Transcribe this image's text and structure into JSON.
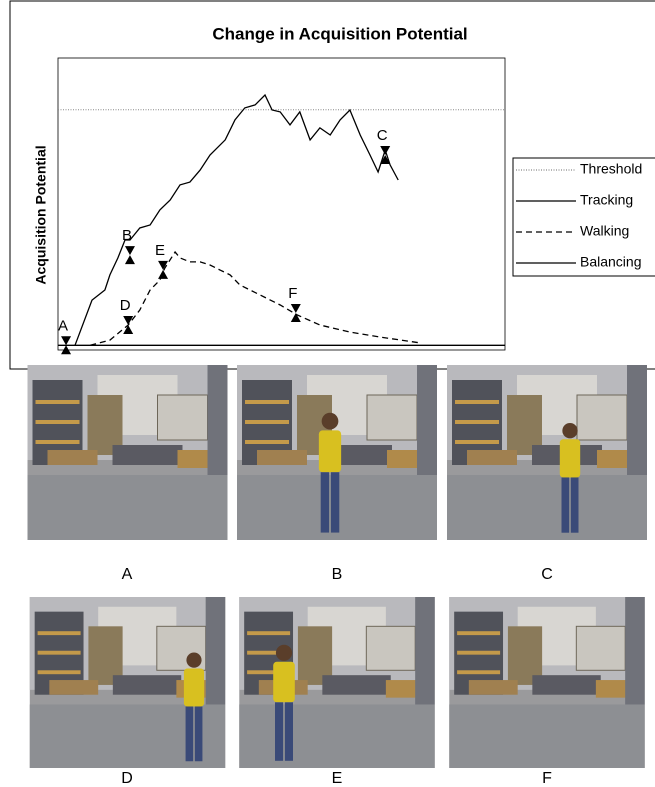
{
  "chart_data": {
    "type": "line",
    "title": "Change in Acquisition Potential",
    "y_label": "Acquisition Potential",
    "xlim": [
      0,
      100
    ],
    "ylim": [
      -2,
      122
    ],
    "series": [
      {
        "name": "Threshold",
        "color": "#888888",
        "style": "dotted",
        "x": [
          0,
          100
        ],
        "values": [
          100,
          100
        ]
      },
      {
        "name": "Tracking",
        "color": "#000000",
        "style": "solid",
        "x": [
          3.8,
          7.6,
          10.5,
          11.6,
          13.4,
          15.0,
          16.1,
          18.3,
          20.6,
          22.8,
          25.1,
          27.3,
          29.5,
          31.8,
          34.0,
          37.4,
          39.6,
          41.8,
          44.1,
          46.3,
          47.9,
          49.7,
          51.9,
          54.1,
          56.4,
          58.6,
          60.9,
          63.1,
          65.3,
          67.6,
          69.8,
          71.6,
          73.2,
          74.3,
          76.1
        ],
        "values": [
          0,
          19.2,
          23.5,
          29.9,
          37.1,
          44.7,
          44.7,
          49.8,
          51.1,
          57.5,
          61.7,
          68.1,
          69.3,
          74.4,
          80.8,
          87.2,
          95.7,
          100.8,
          102.1,
          106.3,
          99.9,
          99.1,
          93.6,
          99.1,
          87.2,
          92.3,
          89.3,
          95.7,
          99.9,
          89.3,
          80.8,
          73.6,
          82.9,
          76.6,
          70.2
        ]
      },
      {
        "name": "Walking",
        "color": "#000000",
        "style": "dashed",
        "x": [
          7.2,
          11.6,
          15.7,
          18.3,
          20.6,
          22.8,
          23.9,
          26.2,
          27.3,
          29.5,
          31.8,
          34.0,
          36.2,
          38.5,
          40.7,
          45.2,
          49.7,
          53.5,
          58.6,
          65.3,
          72.0,
          81.0
        ],
        "values": [
          0,
          2.2,
          8.6,
          15.0,
          23.5,
          27.7,
          32.8,
          39.6,
          37.1,
          35.4,
          35.4,
          34.1,
          32.0,
          29.9,
          25.6,
          21.4,
          17.1,
          12.9,
          8.6,
          5.6,
          3.5,
          1.0
        ]
      },
      {
        "name": "Balancing",
        "color": "#000000",
        "style": "solid",
        "x": [
          0,
          100
        ],
        "values": [
          0,
          0
        ]
      }
    ],
    "markers": [
      {
        "label": "A",
        "x": 1.8,
        "y": 0
      },
      {
        "label": "B",
        "x": 16.1,
        "y": 38.3
      },
      {
        "label": "C",
        "x": 73.2,
        "y": 80.8
      },
      {
        "label": "D",
        "x": 15.7,
        "y": 8.6
      },
      {
        "label": "E",
        "x": 23.5,
        "y": 32.0
      },
      {
        "label": "F",
        "x": 53.2,
        "y": 13.7
      }
    ]
  },
  "frames": [
    "A",
    "B",
    "C",
    "D",
    "E",
    "F"
  ]
}
